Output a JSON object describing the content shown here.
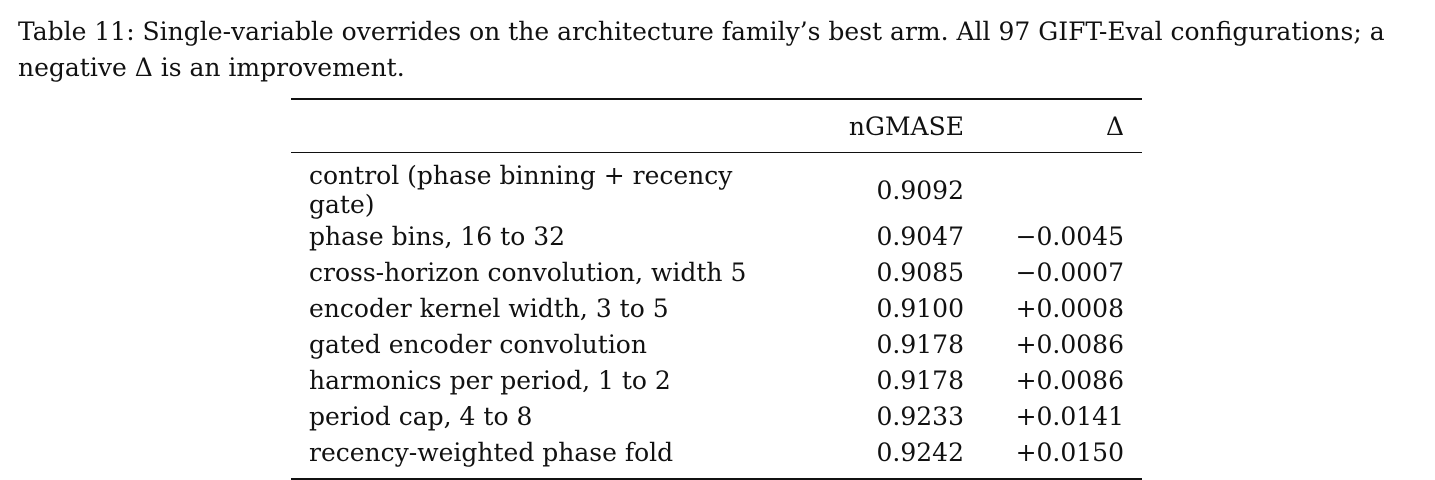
{
  "caption": "Table 11: Single-variable overrides on the architecture family’s best arm. All 97 GIFT-Eval configurations; a negative Δ is an improvement.",
  "table": {
    "headers": [
      "",
      "nGMASE",
      "Δ"
    ],
    "rows": [
      {
        "label": "control (phase binning + recency gate)",
        "ngmase": "0.9092",
        "delta": ""
      },
      {
        "label": "phase bins, 16 to 32",
        "ngmase": "0.9047",
        "delta": "−0.0045"
      },
      {
        "label": "cross-horizon convolution, width 5",
        "ngmase": "0.9085",
        "delta": "−0.0007"
      },
      {
        "label": "encoder kernel width, 3 to 5",
        "ngmase": "0.9100",
        "delta": "+0.0008"
      },
      {
        "label": "gated encoder convolution",
        "ngmase": "0.9178",
        "delta": "+0.0086"
      },
      {
        "label": "harmonics per period, 1 to 2",
        "ngmase": "0.9178",
        "delta": "+0.0086"
      },
      {
        "label": "period cap, 4 to 8",
        "ngmase": "0.9233",
        "delta": "+0.0141"
      },
      {
        "label": "recency-weighted phase fold",
        "ngmase": "0.9242",
        "delta": "+0.0150"
      }
    ]
  }
}
